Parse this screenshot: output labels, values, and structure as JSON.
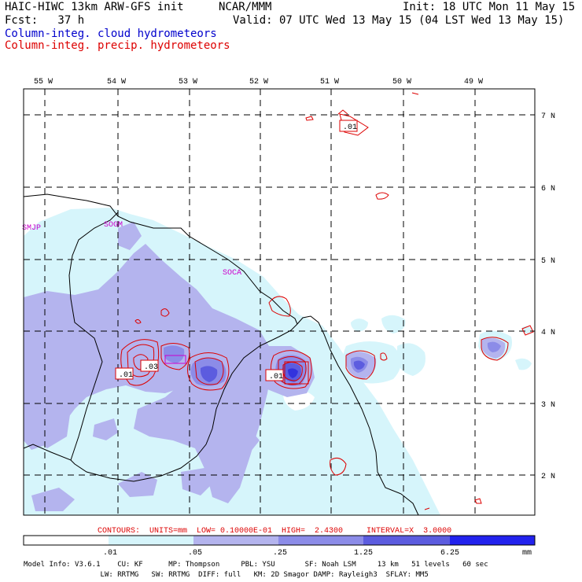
{
  "header": {
    "model_title": "HAIC-HIWC 13km ARW-GFS init",
    "org": "NCAR/MMM",
    "init": "Init: 18 UTC Mon 11 May 15",
    "fcst": "Fcst:   37 h",
    "valid": "Valid: 07 UTC Wed 13 May 15 (04 LST Wed 13 May 15)",
    "field1": "Column-integ. cloud hydrometeors",
    "field2": "Column-integ. precip. hydrometeors",
    "field1_color": "#0000cc",
    "field2_color": "#dd0000"
  },
  "axes": {
    "lon_labels": [
      "55 W",
      "54 W",
      "53 W",
      "52 W",
      "51 W",
      "50 W",
      "49 W"
    ],
    "lat_labels": [
      "7 N",
      "6 N",
      "5 N",
      "4 N",
      "3 N",
      "2 N"
    ]
  },
  "stations": [
    "SMJP",
    "SOGM",
    "SOCA"
  ],
  "contour_labels": [
    ".01",
    ".01",
    ".03",
    ".01",
    ".01"
  ],
  "contour_info": {
    "text": "CONTOURS:  UNITS=mm  LOW= 0.10000E-01  HIGH=  2.4300     INTERVAL=X  3.0000",
    "color": "#dd0000"
  },
  "colorbar": {
    "ticks": [
      ".01",
      ".05",
      ".25",
      "1.25",
      "6.25"
    ],
    "unit": "mm",
    "colors": [
      "#ffffff",
      "#d6f5fb",
      "#b4b4ee",
      "#8c8ce8",
      "#5c5cdf",
      "#3333dd",
      "#2222ee"
    ]
  },
  "footer": {
    "line1": "Model Info: V3.6.1    CU: KF      MP: Thompson     PBL: YSU       SF: Noah LSM     13 km   51 levels   60 sec",
    "line2": "                  LW: RRTMG   SW: RRTMG  DIFF: full   KM: 2D Smagor DAMP: Rayleigh3  SFLAY: MM5"
  }
}
